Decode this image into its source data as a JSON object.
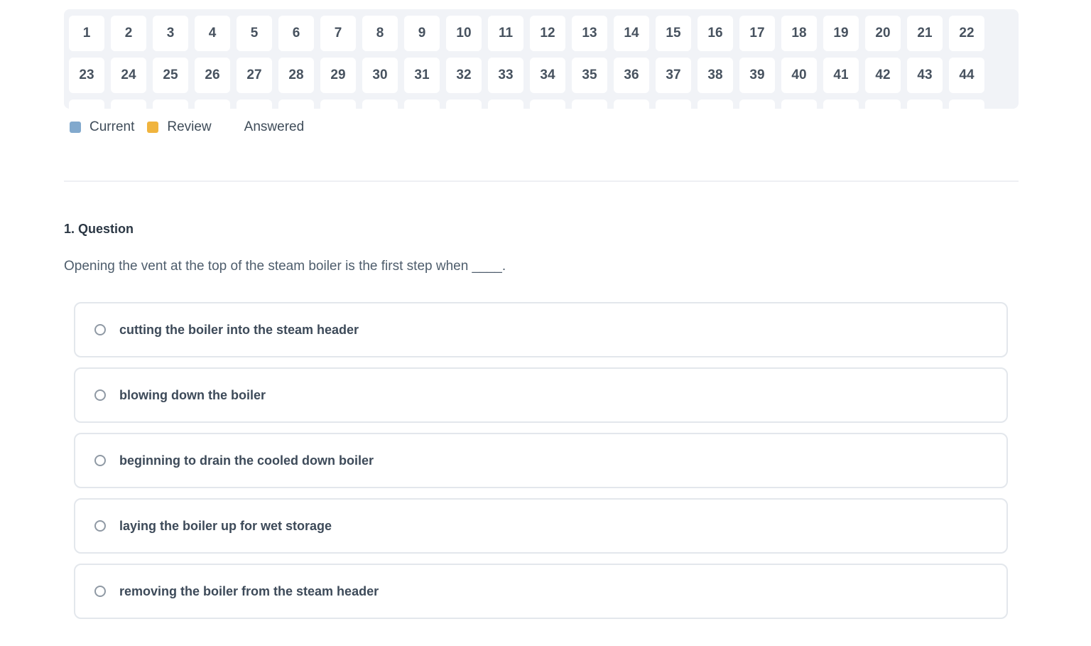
{
  "palette": {
    "rows": [
      [
        "1",
        "2",
        "3",
        "4",
        "5",
        "6",
        "7",
        "8",
        "9",
        "10",
        "11",
        "12",
        "13",
        "14",
        "15",
        "16",
        "17",
        "18",
        "19",
        "20",
        "21",
        "22"
      ],
      [
        "23",
        "24",
        "25",
        "26",
        "27",
        "28",
        "29",
        "30",
        "31",
        "32",
        "33",
        "34",
        "35",
        "36",
        "37",
        "38",
        "39",
        "40",
        "41",
        "42",
        "43",
        "44"
      ]
    ],
    "partial_row_tile_count": 22
  },
  "legend": {
    "items": [
      {
        "name": "current",
        "label": "Current",
        "color": "#82a9cd"
      },
      {
        "name": "review",
        "label": "Review",
        "color": "#f0b43e"
      },
      {
        "name": "answered",
        "label": "Answered",
        "color": "#ffffff"
      }
    ]
  },
  "question": {
    "heading": "1. Question",
    "text": "Opening the vent at the top of the steam boiler is the first step when ____.",
    "options": [
      "cutting the boiler into the steam header",
      "blowing down the boiler",
      "beginning to drain the cooled down boiler",
      "laying the boiler up for wet storage",
      "removing the boiler from the steam header"
    ]
  },
  "colors": {
    "palette_background": "#f1f3f7",
    "tile_text": "#47525f",
    "current_accent": "#82a9cd",
    "review_accent": "#f0b43e",
    "option_border": "#e3e7ec"
  }
}
